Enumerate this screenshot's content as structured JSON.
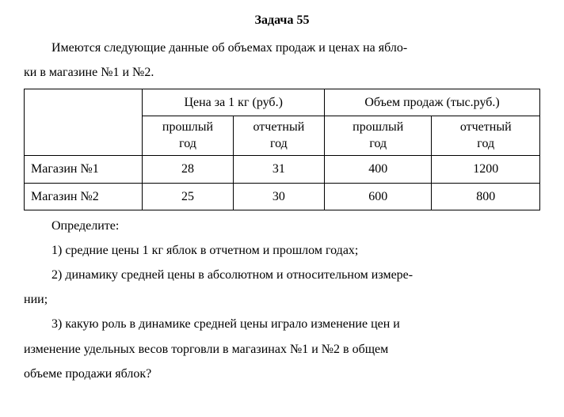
{
  "title": "Задача 55",
  "intro_1": "Имеются следующие данные об объемах продаж и ценах на ябло-",
  "intro_2": "ки в магазине №1 и №2.",
  "table": {
    "hdr_price": "Цена за 1 кг (руб.)",
    "hdr_volume": "Объем продаж (тыс.руб.)",
    "sub_past": "прошлый",
    "sub_year": "год",
    "sub_report": "отчетный",
    "rows": [
      {
        "name": "Магазин №1",
        "price_past": "28",
        "price_rep": "31",
        "vol_past": "400",
        "vol_rep": "1200"
      },
      {
        "name": "Магазин №2",
        "price_past": "25",
        "price_rep": "30",
        "vol_past": "600",
        "vol_rep": "800"
      }
    ]
  },
  "q_lead": "Определите:",
  "q1": "1) средние цены 1 кг яблок в отчетном и прошлом годах;",
  "q2_a": "2) динамику средней цены в абсолютном и относительном измере-",
  "q2_b": "нии;",
  "q3_a": "3) какую роль в динамике средней цены играло изменение цен и",
  "q3_b": "изменение удельных весов торговли в магазинах №1 и №2 в общем",
  "q3_c": "объеме продажи яблок?",
  "colors": {
    "text": "#000000",
    "background": "#ffffff",
    "border": "#000000"
  },
  "font": {
    "family": "Times New Roman",
    "size_body": 16,
    "size_title": 16,
    "title_weight": "bold"
  }
}
